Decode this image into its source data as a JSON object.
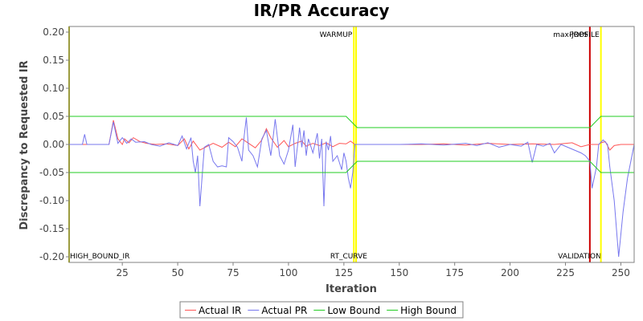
{
  "chart_data": {
    "type": "line",
    "title": "IR/PR Accuracy",
    "xlabel": "Iteration",
    "ylabel": "Discrepancy to Requested IR",
    "xlim": [
      1,
      256
    ],
    "ylim": [
      -0.21,
      0.21
    ],
    "x_ticks": [
      25,
      50,
      75,
      100,
      125,
      150,
      175,
      200,
      225,
      250
    ],
    "y_ticks": [
      0.2,
      0.15,
      0.1,
      0.05,
      0.0,
      -0.05,
      -0.1,
      -0.15,
      -0.2
    ],
    "y_tick_labels": [
      "0.20",
      "0.15",
      "0.10",
      "0.05",
      "0.00",
      "-0.05",
      "-0.10",
      "-0.15",
      "-0.20"
    ],
    "grid": false,
    "legend_position": "bottom",
    "markers": [
      {
        "x": 1,
        "color": "#b8b800",
        "top_label": "",
        "bottom_label": "HIGH_BOUND_IR"
      },
      {
        "x": 129.5,
        "color": "#ffff00",
        "top_label": "WARMUP",
        "bottom_label": ""
      },
      {
        "x": 130.5,
        "color": "#ffff00",
        "top_label": "",
        "bottom_label": "RT_CURVE"
      },
      {
        "x": 236,
        "color": "#cc0000",
        "top_label": "max-jOPS",
        "bottom_label": "VALIDATION"
      },
      {
        "x": 241,
        "color": "#ffff00",
        "top_label": "PROFILE",
        "bottom_label": ""
      }
    ],
    "series": [
      {
        "name": "Actual IR",
        "color": "#ff5555",
        "points": [
          [
            1,
            0
          ],
          [
            19,
            0
          ],
          [
            21,
            0.043
          ],
          [
            23,
            0.01
          ],
          [
            25,
            0
          ],
          [
            26,
            0.01
          ],
          [
            28,
            0.003
          ],
          [
            30,
            0.012
          ],
          [
            33,
            0.005
          ],
          [
            36,
            0.002
          ],
          [
            40,
            0
          ],
          [
            45,
            0.001
          ],
          [
            50,
            -0.002
          ],
          [
            53,
            0.01
          ],
          [
            55,
            -0.008
          ],
          [
            57,
            0.006
          ],
          [
            60,
            -0.01
          ],
          [
            63,
            -0.004
          ],
          [
            66,
            0.002
          ],
          [
            70,
            -0.005
          ],
          [
            73,
            0.004
          ],
          [
            76,
            -0.004
          ],
          [
            79,
            0.01
          ],
          [
            82,
            0.002
          ],
          [
            85,
            -0.006
          ],
          [
            88,
            0.008
          ],
          [
            90,
            0.028
          ],
          [
            92,
            0.012
          ],
          [
            95,
            -0.005
          ],
          [
            98,
            0.007
          ],
          [
            100,
            -0.004
          ],
          [
            103,
            0.002
          ],
          [
            106,
            0.006
          ],
          [
            108,
            -0.003
          ],
          [
            111,
            0.002
          ],
          [
            114,
            -0.002
          ],
          [
            117,
            0.003
          ],
          [
            120,
            -0.004
          ],
          [
            123,
            0.002
          ],
          [
            126,
            0.001
          ],
          [
            128,
            0.006
          ],
          [
            130,
            0
          ],
          [
            160,
            0
          ],
          [
            170,
            0.001
          ],
          [
            180,
            -0.001
          ],
          [
            190,
            0.002
          ],
          [
            200,
            0
          ],
          [
            210,
            0.001
          ],
          [
            220,
            0
          ],
          [
            228,
            0.003
          ],
          [
            232,
            -0.004
          ],
          [
            236,
            0
          ],
          [
            240,
            0
          ],
          [
            241,
            0.003
          ],
          [
            243,
            0.005
          ],
          [
            245,
            -0.01
          ],
          [
            247,
            -0.002
          ],
          [
            250,
            0
          ],
          [
            256,
            0
          ]
        ]
      },
      {
        "name": "Actual PR",
        "color": "#7777ee",
        "points": [
          [
            1,
            0
          ],
          [
            7,
            0
          ],
          [
            8,
            0.018
          ],
          [
            9,
            0
          ],
          [
            19,
            0
          ],
          [
            21,
            0.04
          ],
          [
            23,
            0.002
          ],
          [
            25,
            0.012
          ],
          [
            27,
            0.002
          ],
          [
            29,
            0.01
          ],
          [
            31,
            0.004
          ],
          [
            35,
            0.005
          ],
          [
            38,
            0
          ],
          [
            42,
            -0.003
          ],
          [
            46,
            0.003
          ],
          [
            50,
            -0.002
          ],
          [
            52,
            0.015
          ],
          [
            54,
            -0.008
          ],
          [
            56,
            0.012
          ],
          [
            57,
            -0.03
          ],
          [
            58,
            -0.05
          ],
          [
            59,
            -0.02
          ],
          [
            60,
            -0.11
          ],
          [
            62,
            -0.005
          ],
          [
            64,
            0
          ],
          [
            66,
            -0.03
          ],
          [
            68,
            -0.04
          ],
          [
            70,
            -0.038
          ],
          [
            72,
            -0.04
          ],
          [
            73,
            0.012
          ],
          [
            75,
            0.005
          ],
          [
            77,
            -0.005
          ],
          [
            79,
            -0.03
          ],
          [
            80,
            0.015
          ],
          [
            81,
            0.048
          ],
          [
            82,
            -0.01
          ],
          [
            84,
            -0.02
          ],
          [
            86,
            -0.04
          ],
          [
            88,
            0.01
          ],
          [
            90,
            0.025
          ],
          [
            92,
            -0.02
          ],
          [
            93,
            0.01
          ],
          [
            94,
            0.045
          ],
          [
            96,
            -0.02
          ],
          [
            98,
            -0.035
          ],
          [
            100,
            -0.01
          ],
          [
            102,
            0.035
          ],
          [
            103,
            -0.04
          ],
          [
            105,
            0.03
          ],
          [
            106,
            -0.005
          ],
          [
            107,
            0.025
          ],
          [
            108,
            -0.02
          ],
          [
            109,
            0.01
          ],
          [
            111,
            -0.015
          ],
          [
            113,
            0.02
          ],
          [
            114,
            -0.025
          ],
          [
            115,
            0.01
          ],
          [
            116,
            -0.11
          ],
          [
            117,
            0.005
          ],
          [
            118,
            -0.01
          ],
          [
            119,
            0.015
          ],
          [
            120,
            -0.03
          ],
          [
            122,
            -0.02
          ],
          [
            124,
            -0.045
          ],
          [
            125,
            -0.015
          ],
          [
            126,
            -0.03
          ],
          [
            127,
            -0.06
          ],
          [
            128,
            -0.078
          ],
          [
            129,
            -0.05
          ],
          [
            130,
            0
          ],
          [
            150,
            0
          ],
          [
            160,
            0.001
          ],
          [
            170,
            -0.001
          ],
          [
            180,
            0.002
          ],
          [
            185,
            -0.002
          ],
          [
            190,
            0.003
          ],
          [
            195,
            -0.005
          ],
          [
            200,
            0
          ],
          [
            205,
            -0.003
          ],
          [
            208,
            0.004
          ],
          [
            210,
            -0.032
          ],
          [
            212,
            0
          ],
          [
            215,
            -0.003
          ],
          [
            218,
            0.002
          ],
          [
            220,
            -0.015
          ],
          [
            223,
            0
          ],
          [
            226,
            -0.005
          ],
          [
            229,
            -0.01
          ],
          [
            232,
            -0.015
          ],
          [
            234,
            -0.02
          ],
          [
            236,
            -0.03
          ],
          [
            237,
            -0.078
          ],
          [
            239,
            -0.04
          ],
          [
            240,
            0
          ],
          [
            242,
            0.008
          ],
          [
            244,
            0
          ],
          [
            245,
            -0.04
          ],
          [
            247,
            -0.1
          ],
          [
            249,
            -0.2
          ],
          [
            251,
            -0.12
          ],
          [
            253,
            -0.06
          ],
          [
            256,
            0
          ]
        ]
      },
      {
        "name": "Low Bound",
        "color": "#22cc22",
        "points": [
          [
            1,
            -0.05
          ],
          [
            126,
            -0.05
          ],
          [
            131,
            -0.03
          ],
          [
            236,
            -0.03
          ],
          [
            241,
            -0.05
          ],
          [
            256,
            -0.05
          ]
        ]
      },
      {
        "name": "High Bound",
        "color": "#22cc22",
        "points": [
          [
            1,
            0.05
          ],
          [
            126,
            0.05
          ],
          [
            131,
            0.03
          ],
          [
            236,
            0.03
          ],
          [
            241,
            0.05
          ],
          [
            256,
            0.05
          ]
        ]
      }
    ]
  }
}
